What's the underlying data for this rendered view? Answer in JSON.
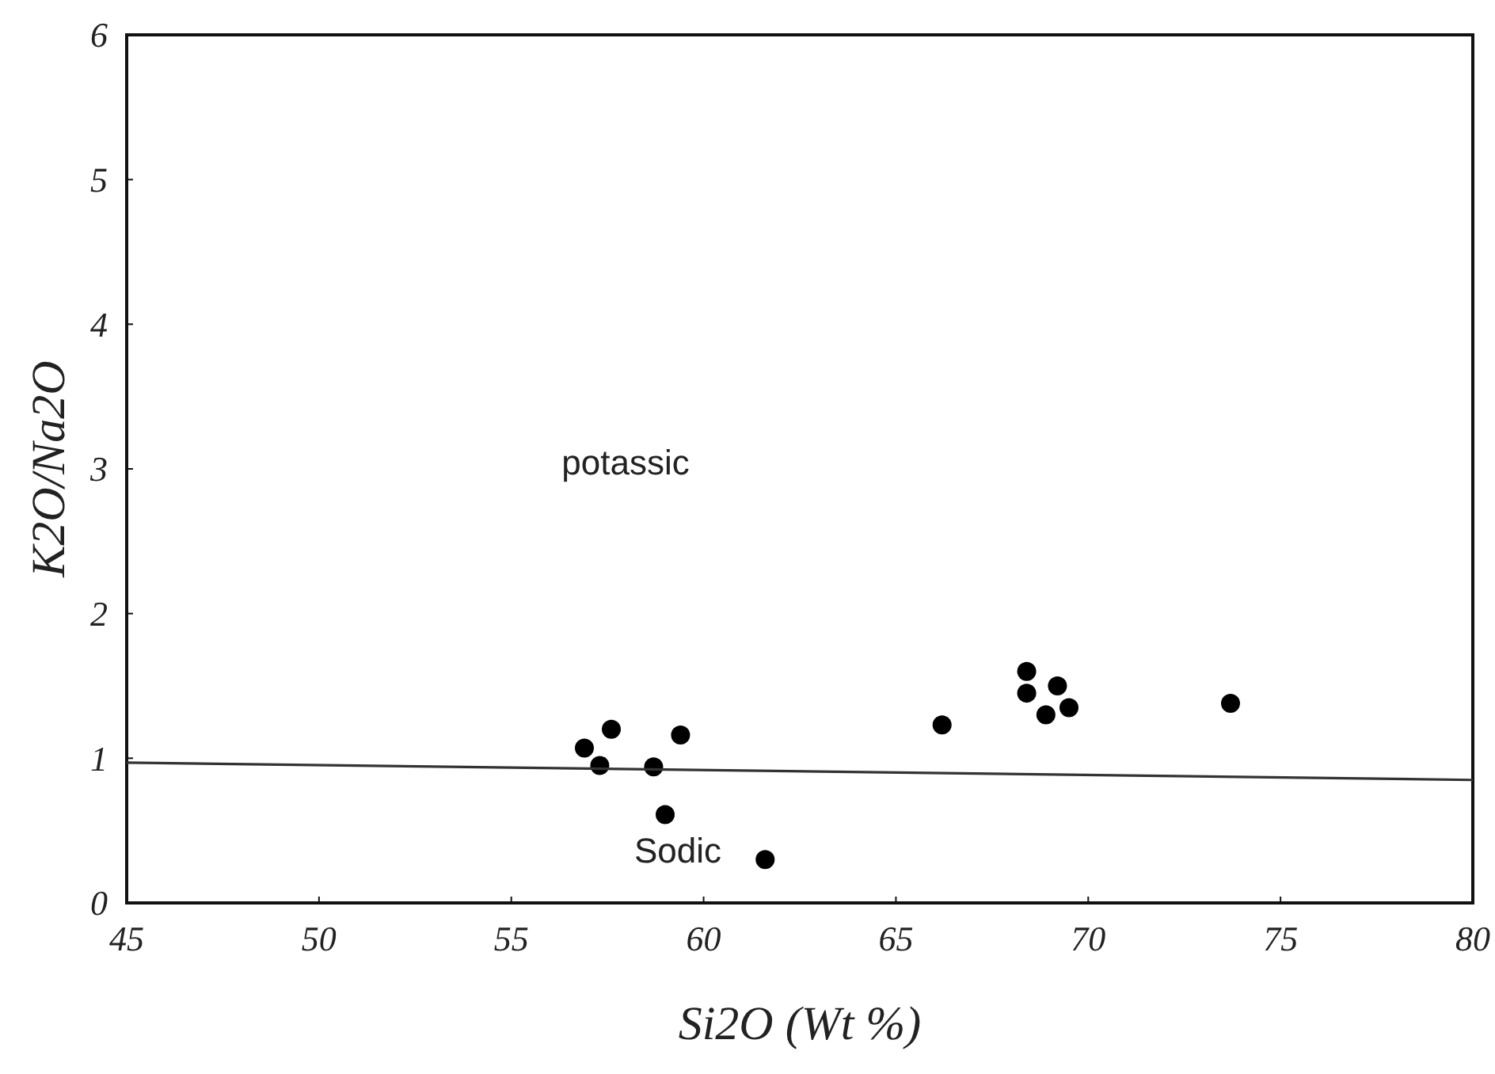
{
  "chart_data": {
    "type": "scatter",
    "xlabel": "Si2O (Wt %)",
    "ylabel": "K2O/Na2O",
    "xlim": [
      45,
      80
    ],
    "ylim": [
      0,
      6
    ],
    "xticks": [
      45,
      50,
      55,
      60,
      65,
      70,
      75,
      80
    ],
    "yticks": [
      0,
      1,
      2,
      3,
      4,
      5,
      6
    ],
    "grid": false,
    "marker": "circle",
    "annotations": [
      "potassic",
      "Sodic"
    ],
    "series": [
      {
        "color": "#000000",
        "x": [
          56.9,
          57.6,
          57.3,
          58.7,
          59.4,
          59.0,
          61.6,
          66.2,
          68.4,
          68.4,
          69.2,
          68.9,
          69.5,
          73.7
        ],
        "values": [
          1.07,
          1.2,
          0.95,
          0.94,
          1.16,
          0.61,
          0.3,
          1.23,
          1.6,
          1.45,
          1.5,
          1.3,
          1.35,
          1.38
        ]
      },
      {
        "type": "line",
        "color": "#333333",
        "x": [
          45,
          80
        ],
        "values": [
          0.97,
          0.85
        ],
        "line_style": "solid",
        "marker": "none"
      }
    ]
  }
}
